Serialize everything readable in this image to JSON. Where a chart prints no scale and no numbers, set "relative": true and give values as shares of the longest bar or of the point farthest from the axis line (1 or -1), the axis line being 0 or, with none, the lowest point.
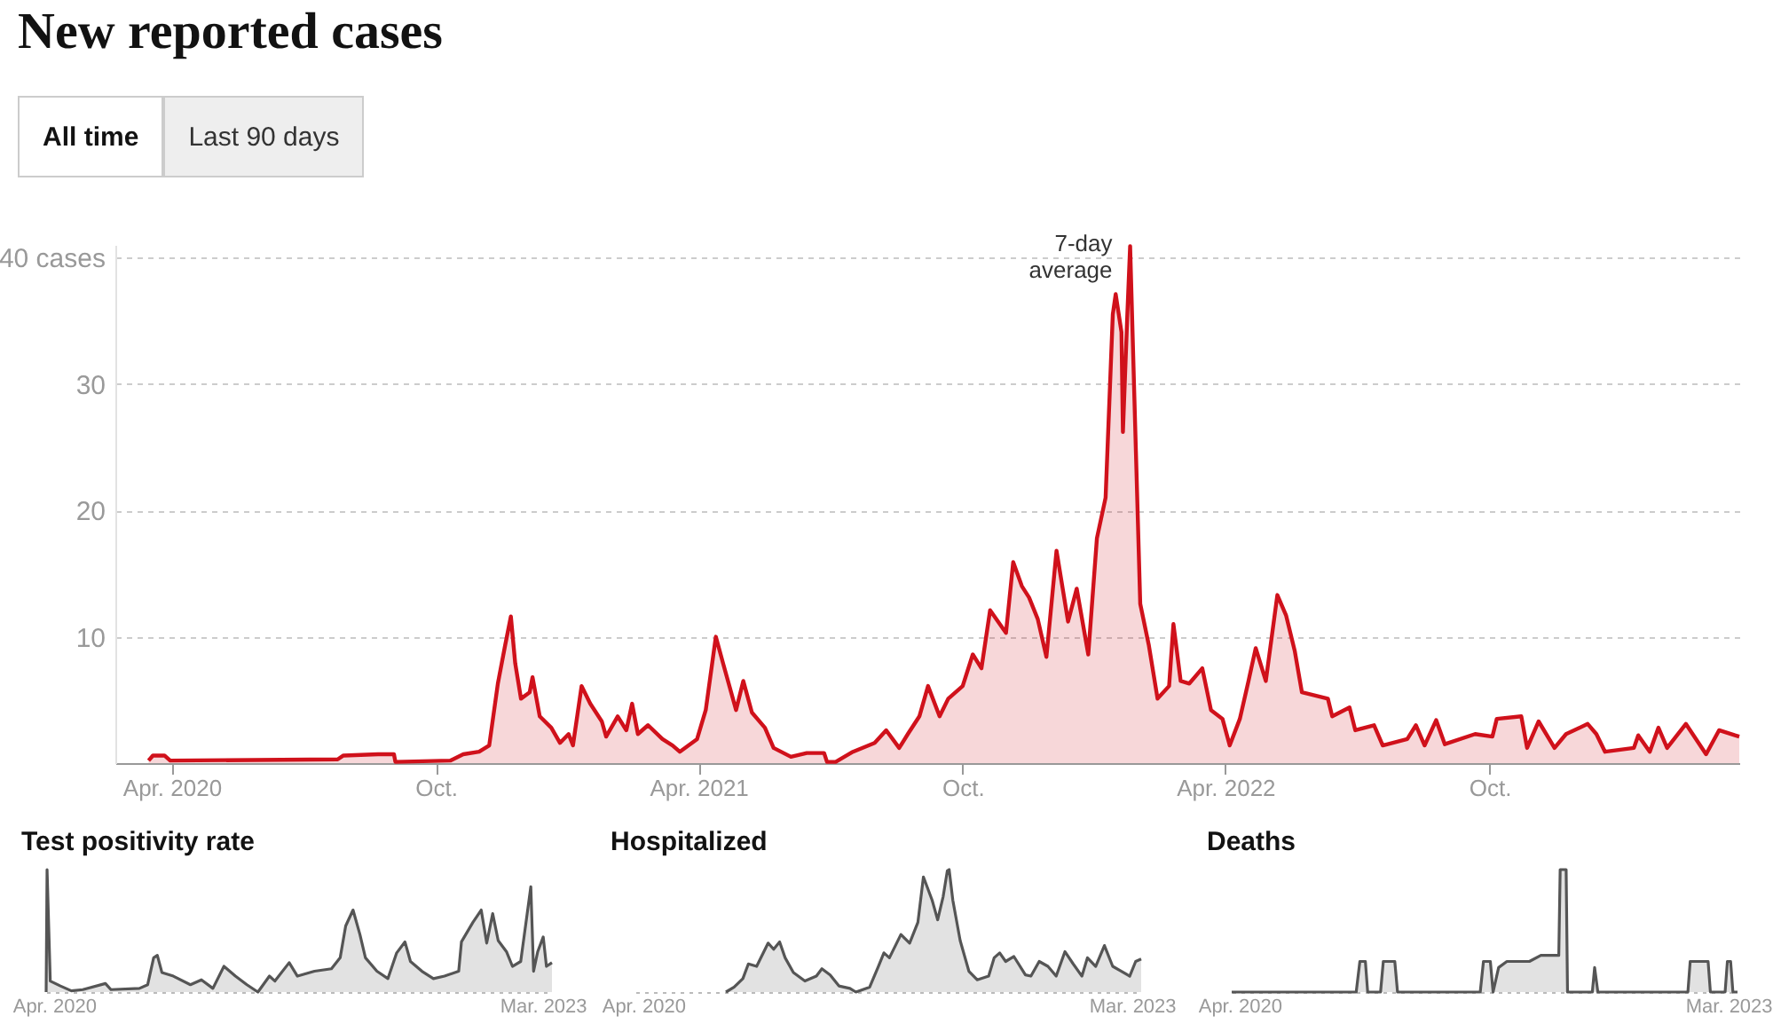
{
  "chart_data": [
    {
      "type": "area",
      "title": "New reported cases",
      "annotations": [
        "All time",
        "Last 90 days",
        {
          "text": "7-day average",
          "x": "2022-01-25",
          "y": 40.9
        }
      ],
      "xlim": [
        "2020-02-22",
        "2023-03-23"
      ],
      "xticks": [
        {
          "value": "2020-04-01",
          "label": "Apr. 2020"
        },
        {
          "value": "2020-10-01",
          "label": "Oct."
        },
        {
          "value": "2021-04-01",
          "label": "Apr. 2021"
        },
        {
          "value": "2021-10-01",
          "label": "Oct."
        },
        {
          "value": "2022-04-01",
          "label": "Apr. 2022"
        },
        {
          "value": "2022-10-01",
          "label": "Oct."
        }
      ],
      "ylim": [
        0,
        41
      ],
      "yticks": [
        10,
        20,
        30,
        {
          "value": 40,
          "label": "40 cases"
        }
      ],
      "grid": "y",
      "x": [
        "2020-03-16",
        "2020-03-19",
        "2020-03-27",
        "2020-03-31",
        "2020-07-25",
        "2020-07-29",
        "2020-08-22",
        "2020-09-02",
        "2020-09-03",
        "2020-10-11",
        "2020-10-20",
        "2020-10-31",
        "2020-11-07",
        "2020-11-13",
        "2020-11-18",
        "2020-11-22",
        "2020-11-25",
        "2020-11-29",
        "2020-12-05",
        "2020-12-07",
        "2020-12-12",
        "2020-12-20",
        "2020-12-26",
        "2021-01-01",
        "2021-01-04",
        "2021-01-10",
        "2021-01-16",
        "2021-01-24",
        "2021-01-27",
        "2021-02-04",
        "2021-02-10",
        "2021-02-14",
        "2021-02-18",
        "2021-02-25",
        "2021-03-07",
        "2021-03-14",
        "2021-03-19",
        "2021-03-31",
        "2021-04-06",
        "2021-04-13",
        "2021-04-18",
        "2021-04-27",
        "2021-05-02",
        "2021-05-08",
        "2021-05-17",
        "2021-05-23",
        "2021-06-04",
        "2021-06-15",
        "2021-06-27",
        "2021-06-29",
        "2021-07-05",
        "2021-07-17",
        "2021-08-01",
        "2021-08-09",
        "2021-08-18",
        "2021-08-24",
        "2021-09-01",
        "2021-09-07",
        "2021-09-15",
        "2021-09-21",
        "2021-10-01",
        "2021-10-08",
        "2021-10-14",
        "2021-10-20",
        "2021-10-31",
        "2021-11-05",
        "2021-11-11",
        "2021-11-16",
        "2021-11-22",
        "2021-11-28",
        "2021-12-05",
        "2021-12-13",
        "2021-12-19",
        "2021-12-27",
        "2022-01-02",
        "2022-01-08",
        "2022-01-13",
        "2022-01-15",
        "2022-01-19",
        "2022-01-20",
        "2022-01-23",
        "2022-01-25",
        "2022-01-28",
        "2022-02-01",
        "2022-02-07",
        "2022-02-13",
        "2022-02-21",
        "2022-02-24",
        "2022-03-01",
        "2022-03-07",
        "2022-03-16",
        "2022-03-22",
        "2022-03-30",
        "2022-04-04",
        "2022-04-11",
        "2022-04-17",
        "2022-04-22",
        "2022-04-29",
        "2022-05-07",
        "2022-05-13",
        "2022-05-19",
        "2022-05-24",
        "2022-06-11",
        "2022-06-14",
        "2022-06-26",
        "2022-06-30",
        "2022-07-13",
        "2022-07-19",
        "2022-08-05",
        "2022-08-11",
        "2022-08-17",
        "2022-08-25",
        "2022-08-31",
        "2022-09-21",
        "2022-10-03",
        "2022-10-06",
        "2022-10-23",
        "2022-10-27",
        "2022-11-04",
        "2022-11-15",
        "2022-11-23",
        "2022-12-08",
        "2022-12-14",
        "2022-12-20",
        "2023-01-09",
        "2023-01-12",
        "2023-01-20",
        "2023-01-26",
        "2023-02-01",
        "2023-02-14",
        "2023-02-28",
        "2023-03-09",
        "2023-03-20",
        "2023-03-23"
      ],
      "series": [
        {
          "color": "#d0111b",
          "values": [
            0.2,
            0.6,
            0.6,
            0.2,
            0.3,
            0.6,
            0.7,
            0.7,
            0.1,
            0.2,
            0.7,
            0.9,
            1.4,
            6.3,
            9.3,
            11.6,
            7.9,
            5.1,
            5.6,
            6.8,
            3.7,
            2.8,
            1.6,
            2.3,
            1.4,
            6.1,
            4.7,
            3.3,
            2.1,
            3.7,
            2.6,
            4.7,
            2.3,
            3.0,
            1.9,
            1.4,
            0.9,
            1.9,
            4.2,
            10.0,
            7.9,
            4.2,
            6.5,
            4.0,
            2.8,
            1.2,
            0.5,
            0.8,
            0.8,
            0.1,
            0.1,
            0.9,
            1.6,
            2.6,
            1.2,
            2.3,
            3.7,
            6.1,
            3.7,
            5.1,
            6.1,
            8.6,
            7.5,
            12.1,
            10.3,
            15.9,
            14.0,
            13.1,
            11.4,
            8.4,
            16.8,
            11.2,
            13.8,
            8.6,
            17.8,
            21.0,
            35.5,
            37.1,
            34.1,
            26.2,
            35.3,
            40.9,
            28.7,
            12.6,
            9.3,
            5.1,
            6.1,
            11.0,
            6.5,
            6.3,
            7.5,
            4.2,
            3.5,
            1.4,
            3.5,
            6.5,
            9.1,
            6.5,
            13.3,
            11.7,
            8.9,
            5.6,
            5.1,
            3.7,
            4.4,
            2.6,
            3.0,
            1.4,
            1.9,
            3.0,
            1.4,
            3.4,
            1.5,
            2.3,
            2.1,
            3.5,
            3.7,
            1.2,
            3.3,
            1.2,
            2.3,
            3.1,
            2.3,
            0.9,
            1.2,
            2.2,
            0.9,
            2.8,
            1.2,
            3.1,
            0.7,
            2.6,
            2.2,
            2.1
          ]
        }
      ]
    },
    {
      "type": "area",
      "title": "Test positivity rate",
      "relative": true,
      "xlim": [
        "2020-03-15",
        "2023-03-21"
      ],
      "xticks": [
        {
          "value": "2020-04-01",
          "label": "Apr. 2020"
        },
        {
          "value": "2023-03-01",
          "label": "Mar. 2023"
        }
      ],
      "x": [
        "2020-03-15",
        "2020-03-17",
        "2020-03-24",
        "2020-04-15",
        "2020-05-09",
        "2020-06-03",
        "2020-07-22",
        "2020-08-03",
        "2020-10-04",
        "2020-10-22",
        "2020-11-04",
        "2020-11-12",
        "2020-11-22",
        "2020-12-17",
        "2021-01-23",
        "2021-02-16",
        "2021-03-13",
        "2021-04-06",
        "2021-05-01",
        "2021-05-26",
        "2021-06-19",
        "2021-07-14",
        "2021-07-26",
        "2021-08-26",
        "2021-09-13",
        "2021-10-20",
        "2021-11-26",
        "2021-12-15",
        "2021-12-27",
        "2022-01-12",
        "2022-01-27",
        "2022-02-08",
        "2022-03-05",
        "2022-03-29",
        "2022-04-17",
        "2022-05-05",
        "2022-05-17",
        "2022-06-11",
        "2022-07-06",
        "2022-07-30",
        "2022-08-30",
        "2022-09-05",
        "2022-09-30",
        "2022-10-18",
        "2022-10-30",
        "2022-11-12",
        "2022-11-24",
        "2022-12-12",
        "2022-12-25",
        "2023-01-12",
        "2023-02-03",
        "2023-02-09",
        "2023-02-18",
        "2023-03-02",
        "2023-03-09",
        "2023-03-21"
      ],
      "series": [
        {
          "color": "#555555",
          "values": [
            0,
            1,
            0.09,
            0.05,
            0.01,
            0.02,
            0.07,
            0.02,
            0.03,
            0.06,
            0.28,
            0.3,
            0.16,
            0.13,
            0.06,
            0.1,
            0.03,
            0.21,
            0.13,
            0.06,
            0,
            0.13,
            0.09,
            0.24,
            0.13,
            0.17,
            0.19,
            0.28,
            0.54,
            0.67,
            0.47,
            0.28,
            0.17,
            0.11,
            0.32,
            0.41,
            0.25,
            0.17,
            0.11,
            0.13,
            0.17,
            0.41,
            0.57,
            0.67,
            0.4,
            0.64,
            0.42,
            0.33,
            0.21,
            0.25,
            0.86,
            0.17,
            0.33,
            0.45,
            0.21,
            0.24
          ]
        }
      ]
    },
    {
      "type": "area",
      "title": "Hospitalized",
      "relative": true,
      "xlim": [
        "2020-03-15",
        "2023-03-21"
      ],
      "xticks": [
        {
          "value": "2020-04-01",
          "label": "Apr. 2020"
        },
        {
          "value": "2023-03-01",
          "label": "Mar. 2023"
        }
      ],
      "x": [
        "2020-09-28",
        "2020-10-16",
        "2020-11-04",
        "2020-11-16",
        "2020-12-04",
        "2020-12-29",
        "2021-01-10",
        "2021-01-23",
        "2021-02-04",
        "2021-02-22",
        "2021-03-19",
        "2021-04-13",
        "2021-04-25",
        "2021-05-13",
        "2021-06-01",
        "2021-06-25",
        "2021-07-08",
        "2021-08-07",
        "2021-08-26",
        "2021-09-07",
        "2021-09-19",
        "2021-10-14",
        "2021-11-02",
        "2021-11-20",
        "2021-12-02",
        "2021-12-21",
        "2022-01-02",
        "2022-01-14",
        "2022-01-23",
        "2022-01-27",
        "2022-02-04",
        "2022-02-20",
        "2022-03-11",
        "2022-03-29",
        "2022-04-23",
        "2022-05-05",
        "2022-05-17",
        "2022-05-30",
        "2022-06-17",
        "2022-07-12",
        "2022-07-24",
        "2022-08-11",
        "2022-08-30",
        "2022-09-17",
        "2022-10-06",
        "2022-10-24",
        "2022-11-12",
        "2022-11-24",
        "2022-12-12",
        "2022-12-31",
        "2023-01-18",
        "2023-02-06",
        "2023-02-24",
        "2023-03-09",
        "2023-03-21"
      ],
      "series": [
        {
          "color": "#555555",
          "values": [
            0,
            0.04,
            0.11,
            0.23,
            0.21,
            0.4,
            0.35,
            0.41,
            0.28,
            0.16,
            0.09,
            0.13,
            0.19,
            0.14,
            0.05,
            0.03,
            0,
            0.04,
            0.21,
            0.32,
            0.28,
            0.47,
            0.4,
            0.57,
            0.94,
            0.75,
            0.59,
            0.78,
            0.99,
            1,
            0.75,
            0.42,
            0.17,
            0.1,
            0.13,
            0.28,
            0.32,
            0.25,
            0.29,
            0.14,
            0.13,
            0.25,
            0.21,
            0.13,
            0.33,
            0.23,
            0.13,
            0.28,
            0.21,
            0.38,
            0.21,
            0.17,
            0.13,
            0.25,
            0.27
          ]
        }
      ]
    },
    {
      "type": "area",
      "title": "Deaths",
      "relative": true,
      "xlim": [
        "2020-03-15",
        "2023-03-21"
      ],
      "xticks": [
        {
          "value": "2020-04-01",
          "label": "Apr. 2020"
        },
        {
          "value": "2023-03-01",
          "label": "Mar. 2023"
        }
      ],
      "x": [
        "2020-03-15",
        "2020-12-11",
        "2020-12-19",
        "2020-12-31",
        "2021-01-05",
        "2021-02-02",
        "2021-02-08",
        "2021-03-05",
        "2021-03-11",
        "2021-09-07",
        "2021-09-14",
        "2021-09-29",
        "2021-10-05",
        "2021-10-17",
        "2021-11-04",
        "2021-12-05",
        "2021-12-23",
        "2022-01-17",
        "2022-02-25",
        "2022-02-28",
        "2022-03-13",
        "2022-03-16",
        "2022-05-09",
        "2022-05-14",
        "2022-05-21",
        "2022-12-03",
        "2022-12-08",
        "2023-01-16",
        "2023-01-21",
        "2023-02-22",
        "2023-02-27",
        "2023-03-06",
        "2023-03-11",
        "2023-03-21"
      ],
      "series": [
        {
          "color": "#555555",
          "values": [
            0,
            0,
            0.25,
            0.25,
            0,
            0,
            0.25,
            0.25,
            0,
            0,
            0.25,
            0.25,
            0,
            0.2,
            0.25,
            0.25,
            0.25,
            0.3,
            0.3,
            1,
            1,
            0,
            0,
            0.2,
            0,
            0,
            0.25,
            0.25,
            0,
            0,
            0.25,
            0.25,
            0,
            0
          ]
        }
      ]
    }
  ]
}
